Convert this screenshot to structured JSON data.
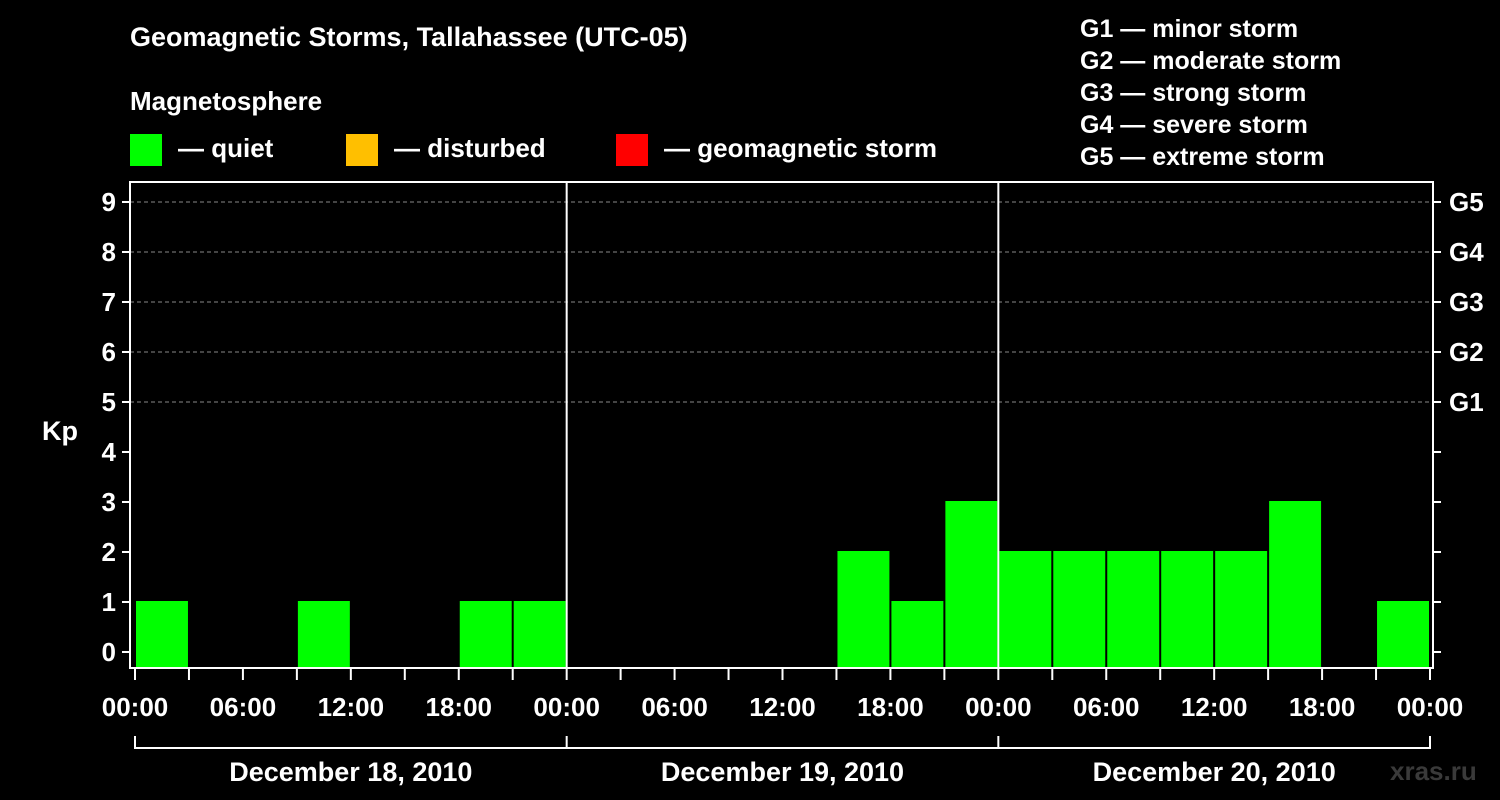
{
  "title": "Geomagnetic Storms, Tallahassee (UTC-05)",
  "magnetosphere_label": "Magnetosphere",
  "legend": [
    {
      "label": "— quiet",
      "color": "#00ff00"
    },
    {
      "label": "— disturbed",
      "color": "#ffbf00"
    },
    {
      "label": "— geomagnetic storm",
      "color": "#ff0000"
    }
  ],
  "g_scale": [
    "G1 — minor storm",
    "G2 — moderate storm",
    "G3 — strong storm",
    "G4 — severe storm",
    "G5 — extreme storm"
  ],
  "watermark": "xras.ru",
  "chart_data": {
    "type": "bar",
    "ylabel": "Kp",
    "ylim": [
      0,
      9
    ],
    "y_ticks": [
      "0",
      "1",
      "2",
      "3",
      "4",
      "5",
      "6",
      "7",
      "8",
      "9"
    ],
    "right_ticks": [
      {
        "kp": 5,
        "label": "G1"
      },
      {
        "kp": 6,
        "label": "G2"
      },
      {
        "kp": 7,
        "label": "G3"
      },
      {
        "kp": 8,
        "label": "G4"
      },
      {
        "kp": 9,
        "label": "G5"
      }
    ],
    "grid": "dashed horizontal at Kp 5-9",
    "x_tick_labels": [
      "00:00",
      "06:00",
      "12:00",
      "18:00",
      "00:00",
      "06:00",
      "12:00",
      "18:00",
      "00:00",
      "06:00",
      "12:00",
      "18:00",
      "00:00"
    ],
    "day_labels": [
      "December 18, 2010",
      "December 19, 2010",
      "December 20, 2010"
    ],
    "interval_hours": 3,
    "bar_color": "#00ff00",
    "kp_values": [
      1,
      0,
      0,
      1,
      0,
      0,
      1,
      1,
      0,
      0,
      0,
      0,
      0,
      2,
      1,
      3,
      2,
      2,
      2,
      2,
      2,
      3,
      0,
      1
    ]
  }
}
